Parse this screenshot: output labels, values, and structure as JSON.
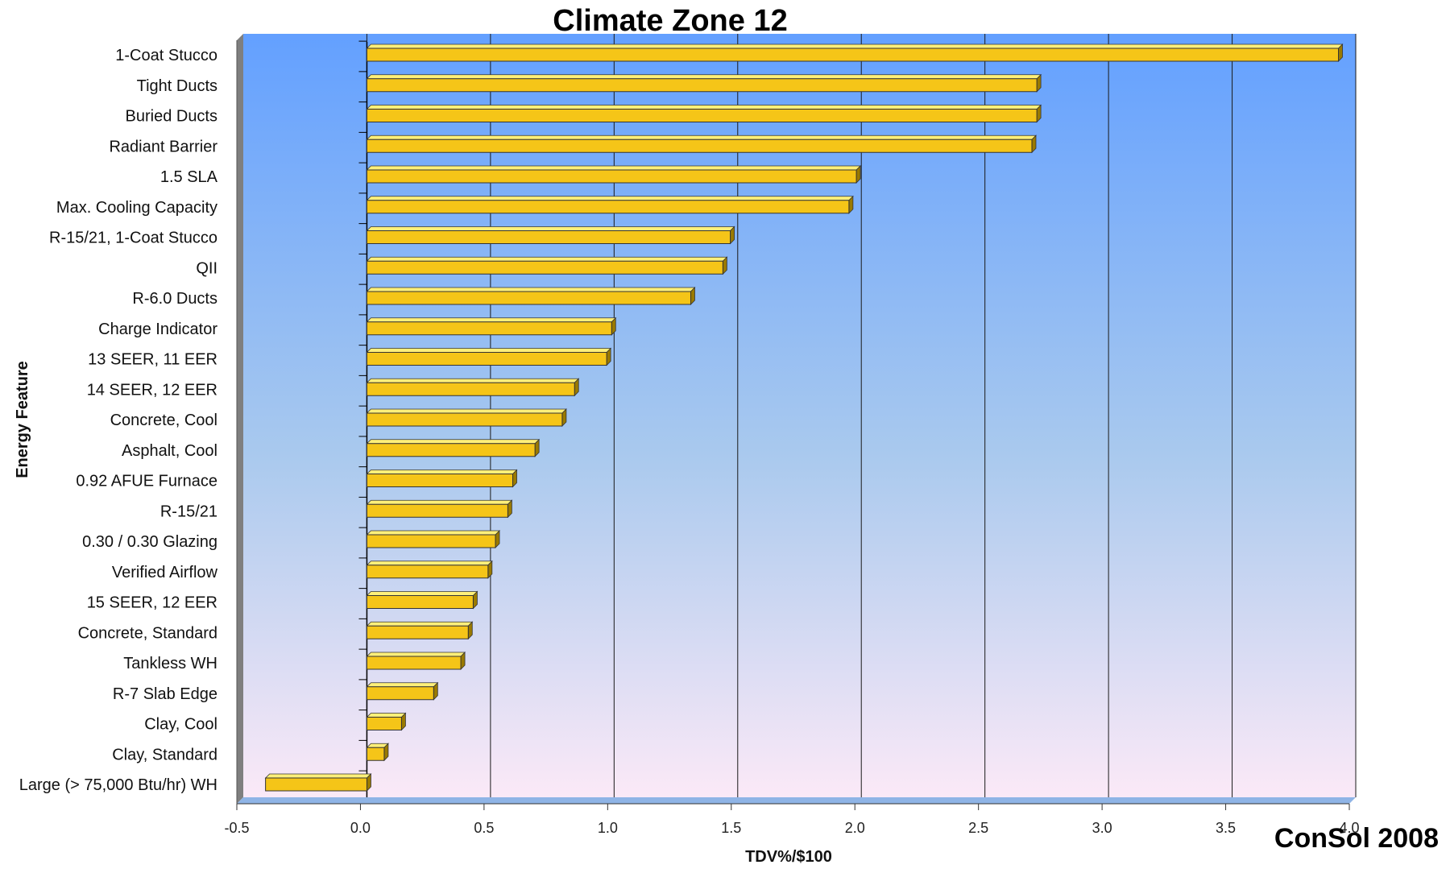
{
  "chart_data": {
    "type": "bar",
    "orientation": "horizontal",
    "title": "Climate Zone 12",
    "xlabel": "TDV%/$100",
    "ylabel": "Energy Feature",
    "xlim": [
      -0.5,
      4.0
    ],
    "xticks": [
      "-0.5",
      "0.0",
      "0.5",
      "1.0",
      "1.5",
      "2.0",
      "2.5",
      "3.0",
      "3.5",
      "4.0"
    ],
    "grid": "vertical",
    "bar_color": "#F5C518",
    "categories": [
      "1-Coat Stucco",
      "Tight Ducts",
      "Buried Ducts",
      "Radiant Barrier",
      "1.5 SLA",
      "Max. Cooling Capacity",
      "R-15/21, 1-Coat Stucco",
      "QII",
      "R-6.0 Ducts",
      "Charge Indicator",
      "13 SEER, 11 EER",
      "14 SEER, 12 EER",
      "Concrete, Cool",
      "Asphalt, Cool",
      "0.92 AFUE Furnace",
      "R-15/21",
      "0.30 / 0.30 Glazing",
      "Verified Airflow",
      "15 SEER, 12 EER",
      "Concrete, Standard",
      "Tankless WH",
      "R-7 Slab Edge",
      "Clay, Cool",
      "Clay, Standard",
      "Large (> 75,000 Btu/hr) WH"
    ],
    "values": [
      3.93,
      2.71,
      2.71,
      2.69,
      1.98,
      1.95,
      1.47,
      1.44,
      1.31,
      0.99,
      0.97,
      0.84,
      0.79,
      0.68,
      0.59,
      0.57,
      0.52,
      0.49,
      0.43,
      0.41,
      0.38,
      0.27,
      0.14,
      0.07,
      -0.41
    ]
  },
  "watermark": "ConSol 2008"
}
